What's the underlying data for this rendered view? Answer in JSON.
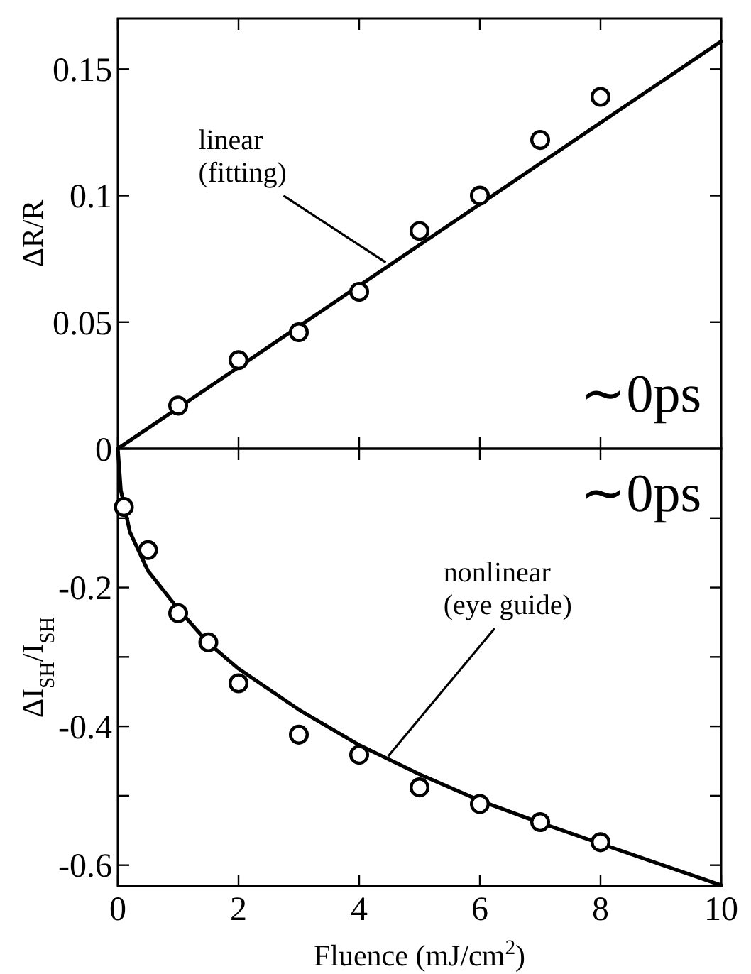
{
  "chart_data": [
    {
      "type": "scatter",
      "ylabel": "ΔR/R",
      "xlim": [
        0,
        10
      ],
      "ylim": [
        0,
        0.17
      ],
      "xticks": [
        0,
        2,
        4,
        6,
        8,
        10
      ],
      "yticks": [
        0,
        0.05,
        0.1,
        0.15
      ],
      "tick_labels": "y",
      "marker": "circle",
      "annotations": [
        "∼0ps",
        {
          "text": "linear\n(fitting)",
          "x": 4.44,
          "y": 0.0736
        }
      ],
      "series": [
        {
          "color": "#000000",
          "x": [
            1,
            2,
            3,
            4,
            5,
            6,
            7,
            8
          ],
          "values": [
            0.017,
            0.035,
            0.046,
            0.062,
            0.086,
            0.1,
            0.122,
            0.139
          ]
        },
        {
          "type": "line",
          "color": "#000000",
          "line_style": "solid",
          "marker": "none",
          "x": [
            0,
            10
          ],
          "values": [
            0,
            0.161
          ]
        }
      ]
    },
    {
      "type": "scatter",
      "ylabel": "ΔI$_{SH}$/I$_{SH}$",
      "xlabel": "Fluence (mJ/cm$^{2}$)",
      "xlim": [
        0,
        10
      ],
      "ylim": [
        -0.63,
        0
      ],
      "xticks": [
        0,
        2,
        4,
        6,
        8,
        10
      ],
      "yticks": [
        {
          "value": -0.6,
          "label": "-0.6"
        },
        {
          "value": -0.5,
          "label": null
        },
        {
          "value": -0.4,
          "label": "-0.4"
        },
        {
          "value": -0.3,
          "label": null
        },
        {
          "value": -0.2,
          "label": "-0.2"
        },
        {
          "value": -0.1,
          "label": null
        }
      ],
      "marker": "circle",
      "annotations": [
        "∼0ps",
        {
          "text": "nonlinear\n(eye guide)",
          "x": 4.48,
          "y": -0.443
        }
      ],
      "series": [
        {
          "color": "#000000",
          "x": [
            0.1,
            0.5,
            1,
            1.5,
            2,
            3,
            4,
            5,
            6,
            7,
            8
          ],
          "values": [
            -0.084,
            -0.146,
            -0.237,
            -0.279,
            -0.338,
            -0.412,
            -0.441,
            -0.488,
            -0.512,
            -0.538,
            -0.567
          ]
        },
        {
          "type": "line",
          "color": "#000000",
          "line_style": "solid",
          "marker": "none",
          "x": [
            0,
            0.05,
            0.2,
            0.5,
            1,
            1.5,
            2,
            3,
            4,
            5,
            6,
            7,
            8,
            10
          ],
          "values": [
            0,
            -0.06,
            -0.12,
            -0.176,
            -0.231,
            -0.28,
            -0.317,
            -0.376,
            -0.427,
            -0.469,
            -0.507,
            -0.539,
            -0.569,
            -0.629
          ]
        }
      ]
    }
  ]
}
